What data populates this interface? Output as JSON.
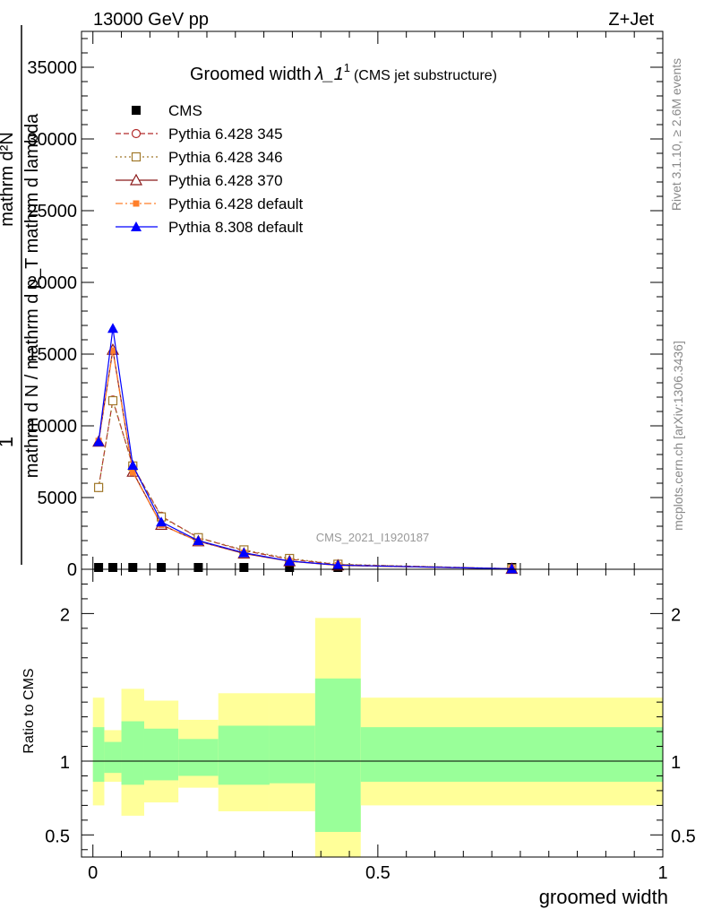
{
  "header": {
    "left": "13000 GeV pp",
    "right": "Z+Jet"
  },
  "side_labels": {
    "rivet": "Rivet 3.1.10, ≥ 2.6M events",
    "mcplots": "mcplots.cern.ch [arXiv:1306.3436]"
  },
  "chart_data": [
    {
      "type": "line",
      "title": "Groomed width",
      "title_math": "λ_1",
      "title_sup": "1",
      "subtitle": "(CMS jet substructure)",
      "watermark": "CMS_2021_I1920187",
      "ylabel_top": "1",
      "ylabel_num": "mathrm d²N",
      "ylabel_den": "mathrm d N / mathrm d p_T mathrm d lambda",
      "xlim": [
        -0.02,
        1.0
      ],
      "ylim": [
        0,
        37500
      ],
      "yticks": [
        0,
        5000,
        10000,
        15000,
        20000,
        25000,
        30000,
        35000
      ],
      "ytick_labels": [
        "0",
        "5000",
        "10000",
        "15000",
        "20000",
        "25000",
        "30000",
        "35000"
      ],
      "legend_position": "top-left",
      "x": [
        0.01,
        0.035,
        0.07,
        0.12,
        0.185,
        0.265,
        0.345,
        0.43,
        0.735
      ],
      "series": [
        {
          "name": "CMS",
          "color": "#000000",
          "marker": "filled-square",
          "line": "none",
          "values": [
            25,
            25,
            25,
            25,
            25,
            25,
            25,
            25,
            25
          ]
        },
        {
          "name": "Pythia 6.428 345",
          "color": "#b22b2b",
          "marker": "open-circle",
          "line": "dashed",
          "values": [
            5700,
            11800,
            7200,
            3700,
            2200,
            1300,
            700,
            330,
            40
          ]
        },
        {
          "name": "Pythia 6.428 346",
          "color": "#a0782a",
          "marker": "open-square",
          "line": "dotted",
          "values": [
            5700,
            11750,
            7200,
            3650,
            2200,
            1350,
            750,
            350,
            40
          ]
        },
        {
          "name": "Pythia 6.428 370",
          "color": "#8b1a1a",
          "marker": "open-triangle",
          "line": "solid",
          "values": [
            8900,
            15300,
            6800,
            3100,
            1950,
            1100,
            560,
            270,
            30
          ]
        },
        {
          "name": "Pythia 6.428 default",
          "color": "#ff7f2a",
          "marker": "filled-small-square",
          "line": "dash-dot",
          "values": [
            8950,
            15250,
            6750,
            3100,
            1950,
            1150,
            560,
            280,
            30
          ]
        },
        {
          "name": "Pythia 8.308 default",
          "color": "#0000ff",
          "marker": "filled-triangle",
          "line": "solid",
          "values": [
            8900,
            16800,
            7250,
            3300,
            2000,
            1150,
            570,
            290,
            30
          ]
        }
      ]
    },
    {
      "type": "area",
      "ylabel": "Ratio to CMS",
      "xlabel": "groomed width",
      "xlim": [
        -0.02,
        1.0
      ],
      "ylim": [
        0.35,
        2.3
      ],
      "yticks": [
        0.5,
        1,
        2
      ],
      "ytick_labels": [
        "0.5",
        "1",
        "2"
      ],
      "xticks": [
        0,
        0.5,
        1
      ],
      "xtick_labels": [
        "0",
        "0.5",
        "1"
      ],
      "reference": 1.0,
      "band_colors": {
        "inner": "#99ff99",
        "outer": "#ffff99"
      },
      "bins": [
        {
          "lo": 0.0,
          "hi": 0.02,
          "in_lo": 0.86,
          "in_hi": 1.23,
          "out_lo": 0.7,
          "out_hi": 1.43
        },
        {
          "lo": 0.02,
          "hi": 0.05,
          "in_lo": 0.92,
          "in_hi": 1.13,
          "out_lo": 0.86,
          "out_hi": 1.21
        },
        {
          "lo": 0.05,
          "hi": 0.09,
          "in_lo": 0.84,
          "in_hi": 1.27,
          "out_lo": 0.63,
          "out_hi": 1.49
        },
        {
          "lo": 0.09,
          "hi": 0.15,
          "in_lo": 0.87,
          "in_hi": 1.22,
          "out_lo": 0.72,
          "out_hi": 1.41
        },
        {
          "lo": 0.15,
          "hi": 0.22,
          "in_lo": 0.9,
          "in_hi": 1.15,
          "out_lo": 0.82,
          "out_hi": 1.28
        },
        {
          "lo": 0.22,
          "hi": 0.31,
          "in_lo": 0.84,
          "in_hi": 1.24,
          "out_lo": 0.66,
          "out_hi": 1.46
        },
        {
          "lo": 0.31,
          "hi": 0.39,
          "in_lo": 0.85,
          "in_hi": 1.24,
          "out_lo": 0.66,
          "out_hi": 1.46
        },
        {
          "lo": 0.39,
          "hi": 0.47,
          "in_lo": 0.52,
          "in_hi": 1.56,
          "out_lo": 0.35,
          "out_hi": 1.97
        },
        {
          "lo": 0.47,
          "hi": 1.0,
          "in_lo": 0.86,
          "in_hi": 1.23,
          "out_lo": 0.7,
          "out_hi": 1.43
        }
      ]
    }
  ]
}
